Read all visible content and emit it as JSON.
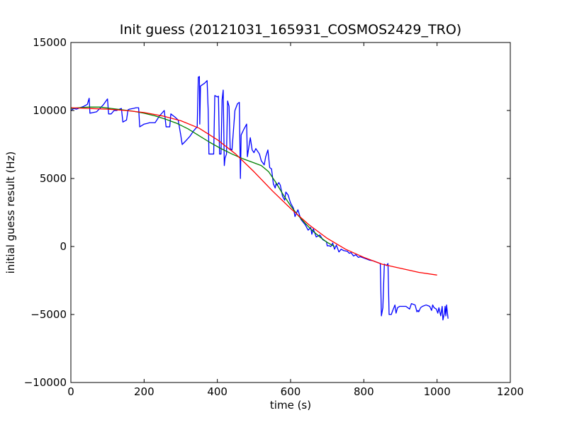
{
  "chart_data": {
    "type": "line",
    "title": "Init guess (20121031_165931_COSMOS2429_TRO)",
    "xlabel": "time (s)",
    "ylabel": "initial guess result (Hz)",
    "xlim": [
      0,
      1200
    ],
    "ylim": [
      -10000,
      15000
    ],
    "xticks": [
      0,
      200,
      400,
      600,
      800,
      1000,
      1200
    ],
    "yticks": [
      -10000,
      -5000,
      0,
      5000,
      10000,
      15000
    ],
    "xtick_labels": [
      "0",
      "200",
      "400",
      "600",
      "800",
      "1000",
      "1200"
    ],
    "ytick_labels": [
      "−10000",
      "−5000",
      "0",
      "5000",
      "10000",
      "15000"
    ],
    "grid": false,
    "legend": "none",
    "series": [
      {
        "color": "#0000ff",
        "points": [
          [
            0,
            10000
          ],
          [
            8,
            10150
          ],
          [
            15,
            10100
          ],
          [
            25,
            10200
          ],
          [
            35,
            10300
          ],
          [
            45,
            10450
          ],
          [
            50,
            10900
          ],
          [
            52,
            9800
          ],
          [
            70,
            9900
          ],
          [
            88,
            10400
          ],
          [
            100,
            10850
          ],
          [
            103,
            9750
          ],
          [
            110,
            9750
          ],
          [
            118,
            10000
          ],
          [
            125,
            10000
          ],
          [
            133,
            10100
          ],
          [
            138,
            10150
          ],
          [
            142,
            9150
          ],
          [
            152,
            9300
          ],
          [
            156,
            10050
          ],
          [
            160,
            10100
          ],
          [
            170,
            10150
          ],
          [
            178,
            10200
          ],
          [
            185,
            10200
          ],
          [
            188,
            8800
          ],
          [
            200,
            9000
          ],
          [
            208,
            9050
          ],
          [
            215,
            9100
          ],
          [
            222,
            9100
          ],
          [
            230,
            9100
          ],
          [
            242,
            9600
          ],
          [
            255,
            10000
          ],
          [
            260,
            8800
          ],
          [
            270,
            8800
          ],
          [
            273,
            9750
          ],
          [
            285,
            9500
          ],
          [
            293,
            9300
          ],
          [
            300,
            8200
          ],
          [
            304,
            7500
          ],
          [
            315,
            7800
          ],
          [
            325,
            8100
          ],
          [
            335,
            8500
          ],
          [
            345,
            8800
          ],
          [
            348,
            12450
          ],
          [
            351,
            12500
          ],
          [
            352,
            9000
          ],
          [
            354,
            11800
          ],
          [
            365,
            12000
          ],
          [
            372,
            12200
          ],
          [
            375,
            10000
          ],
          [
            377,
            6800
          ],
          [
            390,
            6800
          ],
          [
            393,
            11100
          ],
          [
            400,
            11000
          ],
          [
            403,
            11050
          ],
          [
            406,
            6800
          ],
          [
            410,
            6800
          ],
          [
            413,
            10800
          ],
          [
            416,
            11500
          ],
          [
            419,
            5950
          ],
          [
            421,
            6500
          ],
          [
            425,
            6800
          ],
          [
            428,
            10700
          ],
          [
            432,
            10300
          ],
          [
            435,
            7200
          ],
          [
            440,
            7100
          ],
          [
            448,
            10000
          ],
          [
            455,
            10500
          ],
          [
            460,
            10600
          ],
          [
            463,
            5000
          ],
          [
            465,
            8200
          ],
          [
            472,
            8600
          ],
          [
            480,
            9000
          ],
          [
            482,
            6600
          ],
          [
            490,
            8000
          ],
          [
            495,
            7100
          ],
          [
            500,
            6900
          ],
          [
            505,
            7200
          ],
          [
            515,
            6800
          ],
          [
            520,
            6300
          ],
          [
            528,
            6000
          ],
          [
            532,
            6600
          ],
          [
            538,
            7100
          ],
          [
            543,
            5800
          ],
          [
            548,
            5700
          ],
          [
            553,
            4600
          ],
          [
            558,
            4300
          ],
          [
            560,
            4600
          ],
          [
            563,
            4500
          ],
          [
            568,
            4700
          ],
          [
            572,
            4500
          ],
          [
            578,
            3700
          ],
          [
            584,
            3400
          ],
          [
            587,
            4000
          ],
          [
            593,
            3800
          ],
          [
            600,
            3200
          ],
          [
            608,
            2800
          ],
          [
            612,
            2200
          ],
          [
            620,
            2700
          ],
          [
            628,
            2000
          ],
          [
            640,
            1600
          ],
          [
            648,
            1200
          ],
          [
            655,
            1400
          ],
          [
            658,
            900
          ],
          [
            662,
            1300
          ],
          [
            670,
            700
          ],
          [
            680,
            850
          ],
          [
            688,
            500
          ],
          [
            698,
            350
          ],
          [
            700,
            50
          ],
          [
            705,
            60
          ],
          [
            710,
            0
          ],
          [
            715,
            250
          ],
          [
            720,
            -200
          ],
          [
            725,
            100
          ],
          [
            732,
            -400
          ],
          [
            738,
            -200
          ],
          [
            745,
            -300
          ],
          [
            755,
            -350
          ],
          [
            760,
            -500
          ],
          [
            765,
            -450
          ],
          [
            772,
            -700
          ],
          [
            778,
            -600
          ],
          [
            785,
            -800
          ],
          [
            790,
            -750
          ],
          [
            800,
            -850
          ],
          [
            815,
            -1000
          ],
          [
            825,
            -1050
          ],
          [
            835,
            -1150
          ],
          [
            845,
            -1250
          ],
          [
            848,
            -5100
          ],
          [
            852,
            -4500
          ],
          [
            856,
            -1300
          ],
          [
            862,
            -1400
          ],
          [
            866,
            -1250
          ],
          [
            869,
            -5000
          ],
          [
            875,
            -5000
          ],
          [
            879,
            -4700
          ],
          [
            885,
            -4300
          ],
          [
            888,
            -4900
          ],
          [
            892,
            -4500
          ],
          [
            898,
            -4400
          ],
          [
            905,
            -4400
          ],
          [
            915,
            -4400
          ],
          [
            925,
            -4600
          ],
          [
            930,
            -4200
          ],
          [
            940,
            -4300
          ],
          [
            945,
            -4800
          ],
          [
            948,
            -4700
          ],
          [
            950,
            -4800
          ],
          [
            955,
            -4500
          ],
          [
            960,
            -4400
          ],
          [
            970,
            -4300
          ],
          [
            975,
            -4350
          ],
          [
            980,
            -4400
          ],
          [
            985,
            -4700
          ],
          [
            988,
            -4300
          ],
          [
            992,
            -4500
          ],
          [
            998,
            -4600
          ],
          [
            1002,
            -4900
          ],
          [
            1005,
            -4500
          ],
          [
            1010,
            -5100
          ],
          [
            1014,
            -4400
          ],
          [
            1016,
            -5400
          ],
          [
            1020,
            -4900
          ],
          [
            1022,
            -4400
          ],
          [
            1024,
            -5100
          ],
          [
            1026,
            -4300
          ],
          [
            1028,
            -4800
          ],
          [
            1030,
            -5300
          ]
        ]
      },
      {
        "color": "#008000",
        "points": [
          [
            0,
            10150
          ],
          [
            20,
            10200
          ],
          [
            50,
            10250
          ],
          [
            80,
            10250
          ],
          [
            110,
            10150
          ],
          [
            140,
            10050
          ],
          [
            170,
            9950
          ],
          [
            200,
            9800
          ],
          [
            230,
            9600
          ],
          [
            260,
            9350
          ],
          [
            290,
            9050
          ],
          [
            320,
            8650
          ],
          [
            350,
            8150
          ],
          [
            380,
            7650
          ],
          [
            410,
            7200
          ],
          [
            440,
            6800
          ],
          [
            470,
            6450
          ],
          [
            500,
            6150
          ],
          [
            520,
            5950
          ],
          [
            540,
            5500
          ],
          [
            560,
            4700
          ],
          [
            580,
            3800
          ],
          [
            600,
            3000
          ],
          [
            620,
            2300
          ],
          [
            640,
            1700
          ],
          [
            660,
            1150
          ],
          [
            680,
            700
          ],
          [
            700,
            300
          ],
          [
            720,
            0
          ]
        ]
      },
      {
        "color": "#ff0000",
        "points": [
          [
            0,
            10200
          ],
          [
            50,
            10150
          ],
          [
            100,
            10100
          ],
          [
            150,
            10000
          ],
          [
            200,
            9850
          ],
          [
            250,
            9600
          ],
          [
            300,
            9250
          ],
          [
            350,
            8700
          ],
          [
            400,
            7850
          ],
          [
            450,
            6800
          ],
          [
            500,
            5500
          ],
          [
            550,
            4100
          ],
          [
            600,
            2800
          ],
          [
            650,
            1600
          ],
          [
            700,
            600
          ],
          [
            750,
            -200
          ],
          [
            800,
            -800
          ],
          [
            850,
            -1300
          ],
          [
            900,
            -1600
          ],
          [
            950,
            -1900
          ],
          [
            1000,
            -2100
          ]
        ]
      }
    ]
  }
}
